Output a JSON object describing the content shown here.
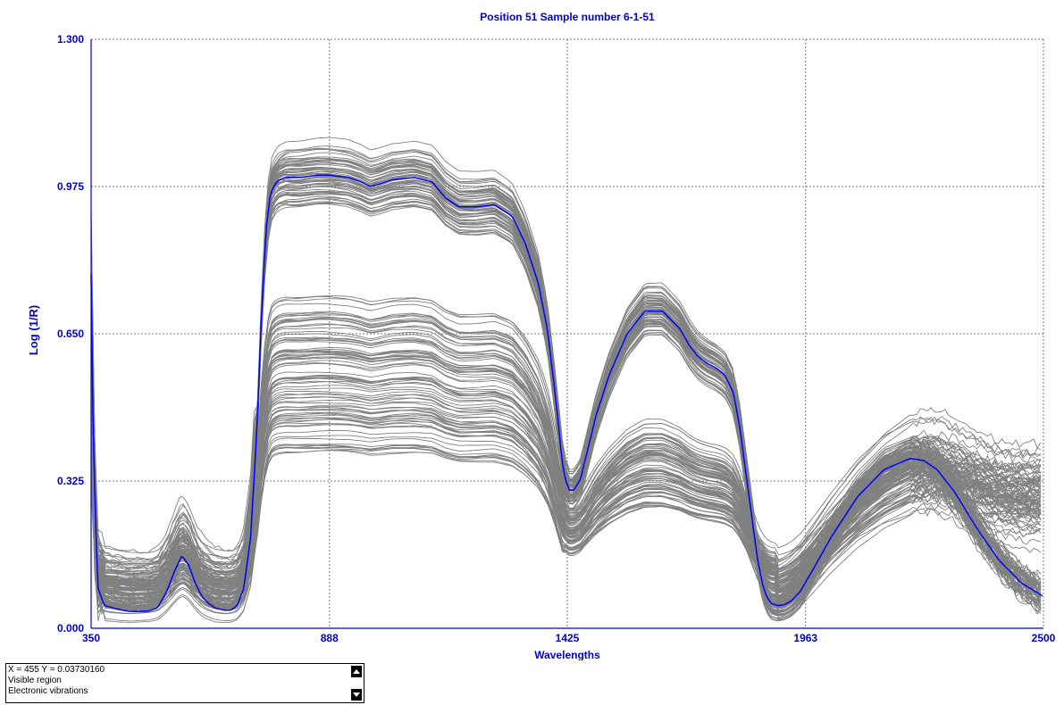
{
  "chart_data": {
    "type": "line",
    "title": "Position 51  Sample number 6-1-51",
    "xlabel": "Wavelengths",
    "ylabel": "Log (1/R)",
    "xlim": [
      350,
      2500
    ],
    "ylim": [
      0.0,
      1.3
    ],
    "xticks": [
      "350",
      "888",
      "1425",
      "1963",
      "2500"
    ],
    "yticks": [
      "0.000",
      "0.325",
      "0.650",
      "0.975",
      "1.300"
    ],
    "grid": true,
    "colors": {
      "highlight": "#0000ff",
      "background_series": "#808080",
      "axis_text": "#0000cc"
    },
    "series": [
      {
        "role": "highlighted",
        "color": "#0000ff",
        "x": [
          350,
          355,
          365,
          380,
          400,
          420,
          440,
          455,
          480,
          500,
          520,
          540,
          555,
          570,
          585,
          600,
          615,
          630,
          650,
          665,
          680,
          695,
          710,
          725,
          735,
          745,
          755,
          765,
          775,
          790,
          820,
          860,
          888,
          930,
          960,
          980,
          1000,
          1030,
          1080,
          1120,
          1150,
          1180,
          1220,
          1260,
          1300,
          1330,
          1360,
          1380,
          1395,
          1405,
          1412,
          1420,
          1430,
          1440,
          1455,
          1470,
          1490,
          1520,
          1560,
          1600,
          1640,
          1680,
          1700,
          1720,
          1740,
          1760,
          1780,
          1800,
          1815,
          1830,
          1845,
          1855,
          1865,
          1875,
          1885,
          1900,
          1915,
          1930,
          1950,
          1980,
          2020,
          2080,
          2140,
          2200,
          2230,
          2260,
          2300,
          2350,
          2400,
          2450,
          2500
        ],
        "y": [
          0.78,
          0.4,
          0.09,
          0.05,
          0.045,
          0.04,
          0.037,
          0.0373,
          0.038,
          0.045,
          0.08,
          0.13,
          0.16,
          0.14,
          0.1,
          0.07,
          0.055,
          0.045,
          0.04,
          0.04,
          0.05,
          0.09,
          0.2,
          0.45,
          0.7,
          0.88,
          0.96,
          0.98,
          0.99,
          0.995,
          0.995,
          1.0,
          1.0,
          0.995,
          0.985,
          0.975,
          0.98,
          0.99,
          0.995,
          0.985,
          0.95,
          0.93,
          0.93,
          0.935,
          0.91,
          0.85,
          0.76,
          0.66,
          0.54,
          0.45,
          0.38,
          0.33,
          0.305,
          0.305,
          0.33,
          0.39,
          0.47,
          0.56,
          0.65,
          0.7,
          0.7,
          0.66,
          0.625,
          0.6,
          0.585,
          0.575,
          0.56,
          0.52,
          0.44,
          0.33,
          0.22,
          0.15,
          0.1,
          0.07,
          0.055,
          0.05,
          0.052,
          0.06,
          0.08,
          0.13,
          0.2,
          0.29,
          0.35,
          0.375,
          0.37,
          0.35,
          0.3,
          0.22,
          0.15,
          0.1,
          0.07
        ]
      }
    ],
    "background_series_count": 150,
    "background_note": "many grey sample spectra in two clusters"
  },
  "info_panel": {
    "lines": [
      "X = 455     Y = 0.03730160",
      "Visible region",
      "Electronic vibrations"
    ],
    "scroll_up_icon": "arrow-up-icon",
    "scroll_down_icon": "arrow-down-icon"
  }
}
